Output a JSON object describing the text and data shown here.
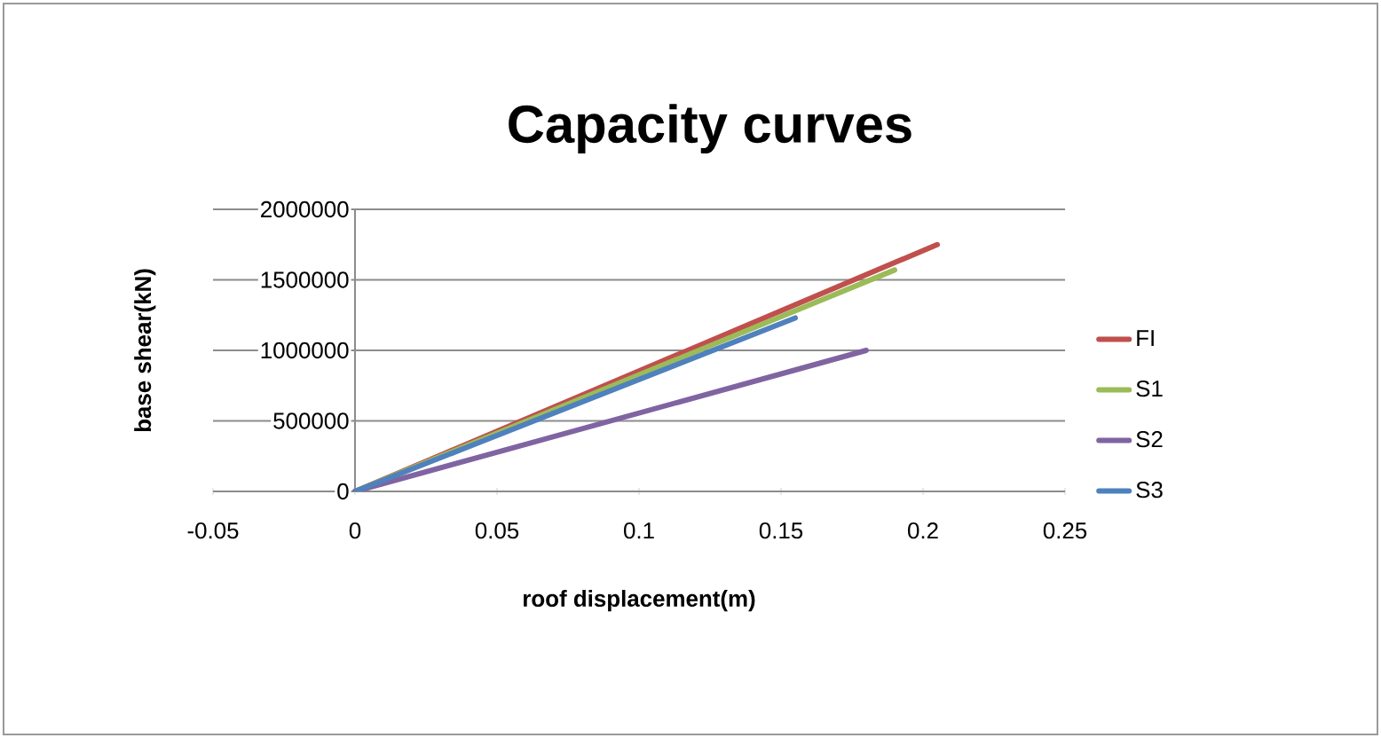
{
  "chart_data": {
    "type": "line",
    "title": "Capacity curves",
    "xlabel": "roof displacement(m)",
    "ylabel": "base shear(kN)",
    "xlim": [
      -0.05,
      0.25
    ],
    "xticks": [
      -0.05,
      0,
      0.05,
      0.1,
      0.15,
      0.2,
      0.25
    ],
    "ylim": [
      0,
      2000000
    ],
    "yticks": [
      0,
      500000,
      1000000,
      1500000,
      2000000
    ],
    "grid": "y",
    "legend": "right",
    "marker": "none",
    "line_style": "solid",
    "series": [
      {
        "name": "FI",
        "color": "#c0504d",
        "x": [
          0,
          0.205
        ],
        "values": [
          0,
          1750000
        ]
      },
      {
        "name": "S1",
        "color": "#9bbb59",
        "x": [
          0,
          0.19
        ],
        "values": [
          0,
          1570000
        ]
      },
      {
        "name": "S2",
        "color": "#8064a2",
        "x": [
          0,
          0.18
        ],
        "values": [
          0,
          1000000
        ]
      },
      {
        "name": "S3",
        "color": "#4f81bd",
        "x": [
          0,
          0.155
        ],
        "values": [
          0,
          1230000
        ]
      }
    ]
  }
}
